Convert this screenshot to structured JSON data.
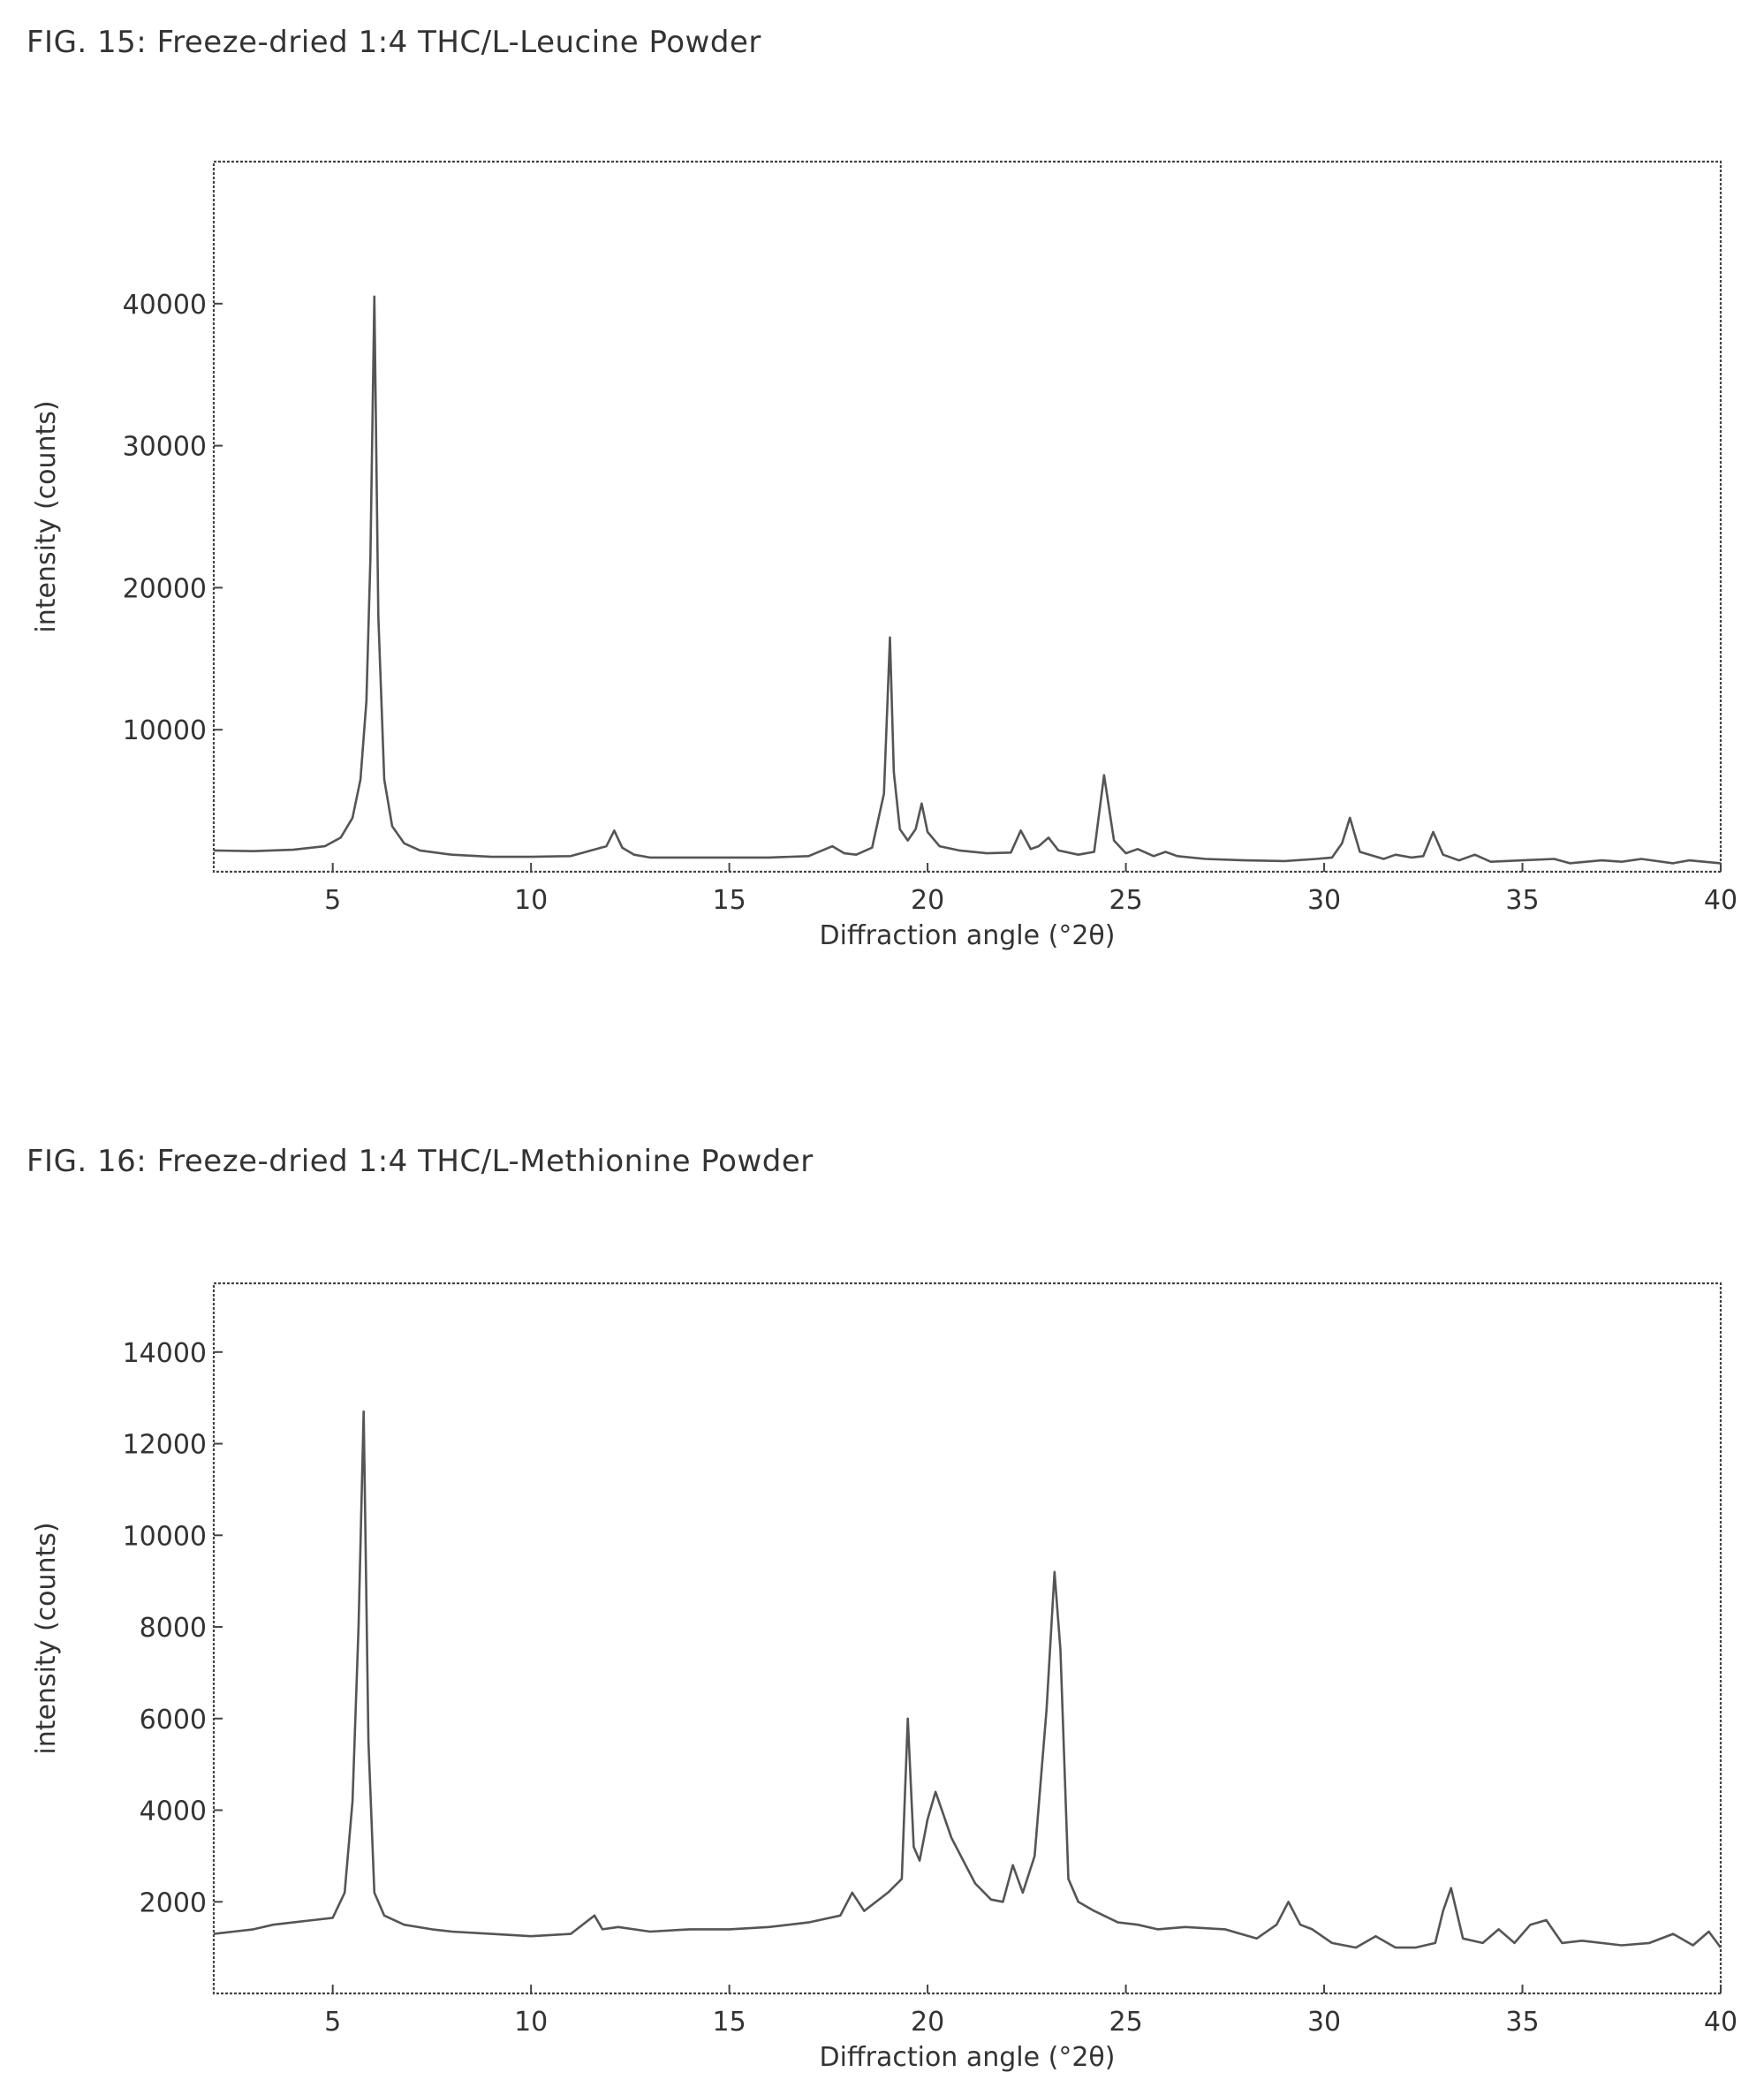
{
  "chart_data": [
    {
      "type": "line",
      "title": "FIG. 15: Freeze-dried 1:4 THC/L-Leucine Powder",
      "xlabel": "Diffraction angle (°2θ)",
      "ylabel": "intensity (counts)",
      "xlim": [
        2,
        40
      ],
      "ylim": [
        0,
        50000
      ],
      "xticks": [
        5,
        10,
        15,
        20,
        25,
        30,
        35,
        40
      ],
      "yticks": [
        10000,
        20000,
        30000,
        40000
      ],
      "grid": false,
      "series": [
        {
          "x": [
            2,
            3,
            4,
            4.8,
            5.2,
            5.5,
            5.7,
            5.85,
            5.95,
            6.05,
            6.15,
            6.3,
            6.5,
            6.8,
            7.2,
            8,
            9,
            10,
            11,
            11.9,
            12.1,
            12.3,
            12.6,
            13,
            14,
            15,
            16,
            17,
            17.6,
            17.9,
            18.2,
            18.6,
            18.9,
            19.05,
            19.15,
            19.3,
            19.5,
            19.7,
            19.85,
            20.0,
            20.3,
            20.8,
            21.5,
            22.1,
            22.35,
            22.6,
            22.8,
            23.05,
            23.3,
            23.8,
            24.2,
            24.45,
            24.7,
            25.0,
            25.3,
            25.7,
            26.0,
            26.3,
            27,
            28,
            29,
            29.8,
            30.2,
            30.45,
            30.65,
            30.9,
            31.5,
            31.8,
            32.2,
            32.5,
            32.75,
            33.0,
            33.4,
            33.8,
            34.2,
            35,
            35.8,
            36.2,
            37,
            37.5,
            38,
            38.8,
            39.2,
            40
          ],
          "y": [
            1500,
            1450,
            1550,
            1800,
            2400,
            3800,
            6500,
            12000,
            22000,
            40500,
            18000,
            6500,
            3200,
            2000,
            1500,
            1200,
            1050,
            1050,
            1100,
            1800,
            2900,
            1700,
            1200,
            1000,
            1000,
            1000,
            1000,
            1100,
            1800,
            1300,
            1200,
            1700,
            5500,
            16500,
            7000,
            3000,
            2200,
            3000,
            4800,
            2800,
            1800,
            1500,
            1300,
            1350,
            2900,
            1600,
            1800,
            2400,
            1500,
            1200,
            1400,
            6800,
            2200,
            1300,
            1600,
            1100,
            1400,
            1100,
            900,
            800,
            750,
            900,
            1000,
            2000,
            3800,
            1400,
            900,
            1200,
            1000,
            1100,
            2800,
            1200,
            800,
            1200,
            700,
            800,
            900,
            600,
            800,
            700,
            900,
            600,
            800,
            600
          ]
        }
      ]
    },
    {
      "type": "line",
      "title": "FIG. 16: Freeze-dried 1:4 THC/L-Methionine Powder",
      "xlabel": "Diffraction angle (°2θ)",
      "ylabel": "intensity (counts)",
      "xlim": [
        2,
        40
      ],
      "ylim": [
        0,
        15500
      ],
      "xticks": [
        5,
        10,
        15,
        20,
        25,
        30,
        35,
        40
      ],
      "yticks": [
        2000,
        4000,
        6000,
        8000,
        10000,
        12000,
        14000
      ],
      "grid": false,
      "series": [
        {
          "x": [
            2,
            2.5,
            3,
            3.5,
            4,
            4.5,
            5,
            5.3,
            5.5,
            5.65,
            5.78,
            5.9,
            6.05,
            6.3,
            6.8,
            7.5,
            8,
            9,
            10,
            11,
            11.6,
            11.8,
            12.2,
            13,
            14,
            15,
            16,
            17,
            17.8,
            18.1,
            18.4,
            19.0,
            19.35,
            19.5,
            19.65,
            19.8,
            20.0,
            20.2,
            20.4,
            20.6,
            20.9,
            21.2,
            21.6,
            21.9,
            22.15,
            22.4,
            22.7,
            23.0,
            23.2,
            23.35,
            23.55,
            23.8,
            24.2,
            24.8,
            25.3,
            25.8,
            26.5,
            27.5,
            28.3,
            28.8,
            29.1,
            29.4,
            29.7,
            30.2,
            30.8,
            31.3,
            31.8,
            32.3,
            32.8,
            33.0,
            33.2,
            33.5,
            34.0,
            34.4,
            34.8,
            35.2,
            35.6,
            36.0,
            36.5,
            37.5,
            38.2,
            38.8,
            39.3,
            39.7,
            40
          ],
          "y": [
            1300,
            1350,
            1400,
            1500,
            1550,
            1600,
            1650,
            2200,
            4200,
            8000,
            12700,
            5500,
            2200,
            1700,
            1500,
            1400,
            1350,
            1300,
            1250,
            1300,
            1700,
            1400,
            1450,
            1350,
            1400,
            1400,
            1450,
            1550,
            1700,
            2200,
            1800,
            2200,
            2500,
            6000,
            3200,
            2900,
            3800,
            4400,
            3900,
            3400,
            2900,
            2400,
            2050,
            2000,
            2800,
            2200,
            3000,
            6200,
            9200,
            7500,
            2500,
            2000,
            1800,
            1550,
            1500,
            1400,
            1450,
            1400,
            1200,
            1500,
            2000,
            1500,
            1400,
            1100,
            1000,
            1250,
            1000,
            1000,
            1100,
            1800,
            2300,
            1200,
            1100,
            1400,
            1100,
            1500,
            1600,
            1100,
            1150,
            1050,
            1100,
            1300,
            1050,
            1350,
            1000
          ]
        }
      ]
    }
  ]
}
